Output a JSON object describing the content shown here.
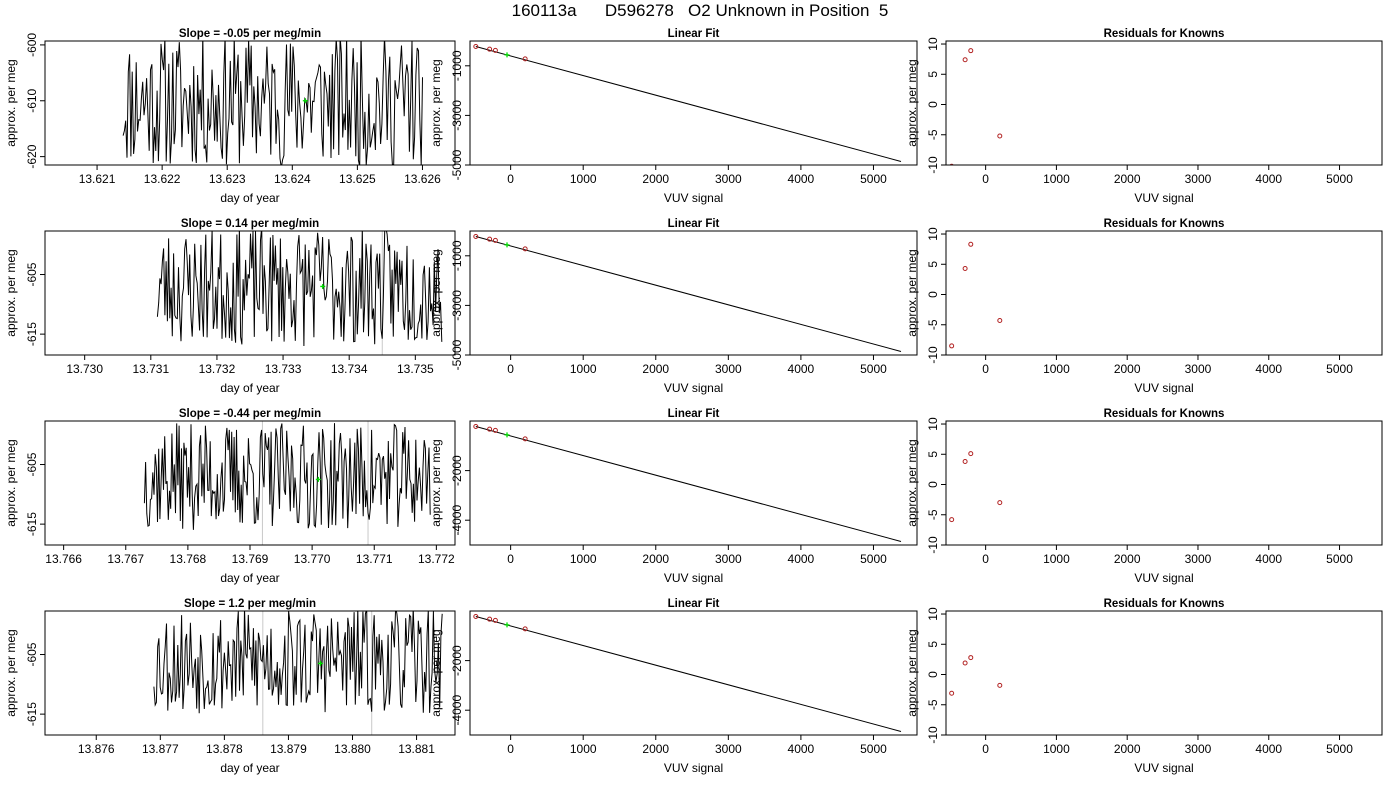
{
  "page": {
    "title": "160113a      D596278   O2 Unknown in Position  5"
  },
  "chart_data": [
    {
      "type": "line",
      "title": "Slope =  -0.05  per meg/min",
      "xlabel": "day of year",
      "ylabel": "approx. per meg",
      "xlim": [
        13.6202,
        13.6265
      ],
      "ylim": [
        -621.5,
        -599.3
      ],
      "xticks": [
        13.621,
        13.622,
        13.623,
        13.624,
        13.625,
        13.626
      ],
      "xtick_labels": [
        "13.621",
        "13.622",
        "13.623",
        "13.624",
        "13.625",
        "13.626"
      ],
      "yticks": [
        -620,
        -610,
        -600
      ],
      "ytick_labels": [
        "-620",
        "-610",
        "-600"
      ],
      "series": [
        {
          "x_start": 13.6214,
          "x_end": 13.626,
          "points": 230,
          "center": -610,
          "amplitude": 12,
          "seed": 11
        }
      ],
      "vlines": [],
      "marker": {
        "x": 13.6242,
        "y": -610,
        "color": "#00dd00"
      }
    },
    {
      "type": "line",
      "title": "Linear Fit",
      "xlabel": "VUV signal",
      "ylabel": "approx. per meg",
      "xlim": [
        -560,
        5600
      ],
      "ylim": [
        -5000,
        0
      ],
      "xticks": [
        0,
        1000,
        2000,
        3000,
        4000,
        5000
      ],
      "xtick_labels": [
        "0",
        "1000",
        "2000",
        "3000",
        "4000",
        "5000"
      ],
      "yticks": [
        -5000,
        -3000,
        -1000
      ],
      "ytick_labels": [
        "-5000",
        "-3000",
        "-1000"
      ],
      "series": [
        {
          "x": [
            -480,
            5380
          ],
          "y": [
            -220,
            -4860
          ]
        }
      ],
      "points": {
        "x": [
          -480,
          -290,
          -210,
          200
        ],
        "y": [
          -220,
          -330,
          -380,
          -720
        ],
        "color": "#b22222"
      },
      "marker": {
        "x": -50,
        "y": -560,
        "color": "#00dd00"
      }
    },
    {
      "type": "scatter",
      "title": "Residuals for Knowns",
      "xlabel": "VUV signal",
      "ylabel": "approx. per meg",
      "xlim": [
        -560,
        5600
      ],
      "ylim": [
        -10,
        10.5
      ],
      "xticks": [
        0,
        1000,
        2000,
        3000,
        4000,
        5000
      ],
      "xtick_labels": [
        "0",
        "1000",
        "2000",
        "3000",
        "4000",
        "5000"
      ],
      "yticks": [
        -10,
        -5,
        0,
        5,
        10
      ],
      "ytick_labels": [
        "-10",
        "-5",
        "0",
        "5",
        "10"
      ],
      "points": {
        "x": [
          -480,
          -290,
          -210,
          200
        ],
        "y": [
          -10.2,
          7.4,
          8.9,
          -5.2
        ],
        "color": "#b22222"
      }
    },
    {
      "type": "line",
      "title": "Slope =  0.14  per meg/min",
      "xlabel": "day of year",
      "ylabel": "approx. per meg",
      "xlim": [
        13.7294,
        13.7356
      ],
      "ylim": [
        -618.5,
        -597.7
      ],
      "xticks": [
        13.73,
        13.731,
        13.732,
        13.733,
        13.734,
        13.735
      ],
      "xtick_labels": [
        "13.730",
        "13.731",
        "13.732",
        "13.733",
        "13.734",
        "13.735"
      ],
      "yticks": [
        -615,
        -605
      ],
      "ytick_labels": [
        "-615",
        "-605"
      ],
      "series": [
        {
          "x_start": 13.7311,
          "x_end": 13.7354,
          "points": 230,
          "center": -607,
          "amplitude": 10,
          "seed": 23
        }
      ],
      "vlines": [
        13.7345
      ],
      "marker": {
        "x": 13.7336,
        "y": -607,
        "color": "#00dd00"
      }
    },
    {
      "type": "line",
      "title": "Linear Fit",
      "xlabel": "VUV signal",
      "ylabel": "approx. per meg",
      "xlim": [
        -560,
        5600
      ],
      "ylim": [
        -5000,
        0
      ],
      "xticks": [
        0,
        1000,
        2000,
        3000,
        4000,
        5000
      ],
      "xtick_labels": [
        "0",
        "1000",
        "2000",
        "3000",
        "4000",
        "5000"
      ],
      "yticks": [
        -5000,
        -3000,
        -1000
      ],
      "ytick_labels": [
        "-5000",
        "-3000",
        "-1000"
      ],
      "series": [
        {
          "x": [
            -480,
            5380
          ],
          "y": [
            -220,
            -4860
          ]
        }
      ],
      "points": {
        "x": [
          -480,
          -290,
          -210,
          200
        ],
        "y": [
          -220,
          -330,
          -380,
          -720
        ],
        "color": "#b22222"
      },
      "marker": {
        "x": -50,
        "y": -560,
        "color": "#00dd00"
      }
    },
    {
      "type": "scatter",
      "title": "Residuals for Knowns",
      "xlabel": "VUV signal",
      "ylabel": "approx. per meg",
      "xlim": [
        -560,
        5600
      ],
      "ylim": [
        -10,
        10.5
      ],
      "xticks": [
        0,
        1000,
        2000,
        3000,
        4000,
        5000
      ],
      "xtick_labels": [
        "0",
        "1000",
        "2000",
        "3000",
        "4000",
        "5000"
      ],
      "yticks": [
        -10,
        -5,
        0,
        5,
        10
      ],
      "ytick_labels": [
        "-10",
        "-5",
        "0",
        "5",
        "10"
      ],
      "points": {
        "x": [
          -480,
          -290,
          -210,
          200
        ],
        "y": [
          -8.5,
          4.3,
          8.3,
          -4.3
        ],
        "color": "#b22222"
      }
    },
    {
      "type": "line",
      "title": "Slope =  -0.44  per meg/min",
      "xlabel": "day of year",
      "ylabel": "approx. per meg",
      "xlim": [
        13.7657,
        13.7723
      ],
      "ylim": [
        -618.5,
        -597.7
      ],
      "xticks": [
        13.766,
        13.767,
        13.768,
        13.769,
        13.77,
        13.771,
        13.772
      ],
      "xtick_labels": [
        "13.766",
        "13.767",
        "13.768",
        "13.769",
        "13.770",
        "13.771",
        "13.772"
      ],
      "yticks": [
        -615,
        -605
      ],
      "ytick_labels": [
        "-615",
        "-605"
      ],
      "series": [
        {
          "x_start": 13.7673,
          "x_end": 13.7719,
          "points": 240,
          "center": -607,
          "amplitude": 9,
          "seed": 37
        }
      ],
      "vlines": [
        13.7692,
        13.7709
      ],
      "marker": {
        "x": 13.7701,
        "y": -607.5,
        "color": "#00dd00"
      }
    },
    {
      "type": "line",
      "title": "Linear Fit",
      "xlabel": "VUV signal",
      "ylabel": "approx. per meg",
      "xlim": [
        -560,
        5600
      ],
      "ylim": [
        -5000,
        0
      ],
      "xticks": [
        0,
        1000,
        2000,
        3000,
        4000,
        5000
      ],
      "xtick_labels": [
        "0",
        "1000",
        "2000",
        "3000",
        "4000",
        "5000"
      ],
      "yticks": [
        -4000,
        -2000
      ],
      "ytick_labels": [
        "-4000",
        "-2000"
      ],
      "series": [
        {
          "x": [
            -480,
            5380
          ],
          "y": [
            -220,
            -4860
          ]
        }
      ],
      "points": {
        "x": [
          -480,
          -290,
          -210,
          200
        ],
        "y": [
          -220,
          -330,
          -380,
          -720
        ],
        "color": "#b22222"
      },
      "marker": {
        "x": -50,
        "y": -560,
        "color": "#00dd00"
      }
    },
    {
      "type": "scatter",
      "title": "Residuals for Knowns",
      "xlabel": "VUV signal",
      "ylabel": "approx. per meg",
      "xlim": [
        -560,
        5600
      ],
      "ylim": [
        -10,
        10.5
      ],
      "xticks": [
        0,
        1000,
        2000,
        3000,
        4000,
        5000
      ],
      "xtick_labels": [
        "0",
        "1000",
        "2000",
        "3000",
        "4000",
        "5000"
      ],
      "yticks": [
        -10,
        -5,
        0,
        5,
        10
      ],
      "ytick_labels": [
        "-10",
        "-5",
        "0",
        "5",
        "10"
      ],
      "points": {
        "x": [
          -480,
          -290,
          -210,
          200
        ],
        "y": [
          -5.8,
          3.8,
          5.1,
          -3.0
        ],
        "color": "#b22222"
      }
    },
    {
      "type": "line",
      "title": "Slope =  1.2  per meg/min",
      "xlabel": "day of year",
      "ylabel": "approx. per meg",
      "xlim": [
        13.8752,
        13.8816
      ],
      "ylim": [
        -618.5,
        -597.7
      ],
      "xticks": [
        13.876,
        13.877,
        13.878,
        13.879,
        13.88,
        13.881
      ],
      "xtick_labels": [
        "13.876",
        "13.877",
        "13.878",
        "13.879",
        "13.880",
        "13.881"
      ],
      "yticks": [
        -615,
        -605
      ],
      "ytick_labels": [
        "-615",
        "-605"
      ],
      "series": [
        {
          "x_start": 13.8769,
          "x_end": 13.8814,
          "points": 230,
          "center": -606,
          "amplitude": 9,
          "seed": 53
        }
      ],
      "vlines": [
        13.8786,
        13.8803
      ],
      "marker": {
        "x": 13.8795,
        "y": -606.5,
        "color": "#00dd00"
      }
    },
    {
      "type": "line",
      "title": "Linear Fit",
      "xlabel": "VUV signal",
      "ylabel": "approx. per meg",
      "xlim": [
        -560,
        5600
      ],
      "ylim": [
        -5000,
        0
      ],
      "xticks": [
        0,
        1000,
        2000,
        3000,
        4000,
        5000
      ],
      "xtick_labels": [
        "0",
        "1000",
        "2000",
        "3000",
        "4000",
        "5000"
      ],
      "yticks": [
        -4000,
        -2000
      ],
      "ytick_labels": [
        "-4000",
        "-2000"
      ],
      "series": [
        {
          "x": [
            -480,
            5380
          ],
          "y": [
            -220,
            -4860
          ]
        }
      ],
      "points": {
        "x": [
          -480,
          -290,
          -210,
          200
        ],
        "y": [
          -220,
          -330,
          -380,
          -720
        ],
        "color": "#b22222"
      },
      "marker": {
        "x": -50,
        "y": -560,
        "color": "#00dd00"
      }
    },
    {
      "type": "scatter",
      "title": "Residuals for Knowns",
      "xlabel": "VUV signal",
      "ylabel": "approx. per meg",
      "xlim": [
        -560,
        5600
      ],
      "ylim": [
        -10,
        10.5
      ],
      "xticks": [
        0,
        1000,
        2000,
        3000,
        4000,
        5000
      ],
      "xtick_labels": [
        "0",
        "1000",
        "2000",
        "3000",
        "4000",
        "5000"
      ],
      "yticks": [
        -10,
        -5,
        0,
        5,
        10
      ],
      "ytick_labels": [
        "-10",
        "-5",
        "0",
        "5",
        "10"
      ],
      "points": {
        "x": [
          -480,
          -290,
          -210,
          200
        ],
        "y": [
          -3.1,
          1.9,
          2.8,
          -1.8
        ],
        "color": "#b22222"
      }
    }
  ]
}
